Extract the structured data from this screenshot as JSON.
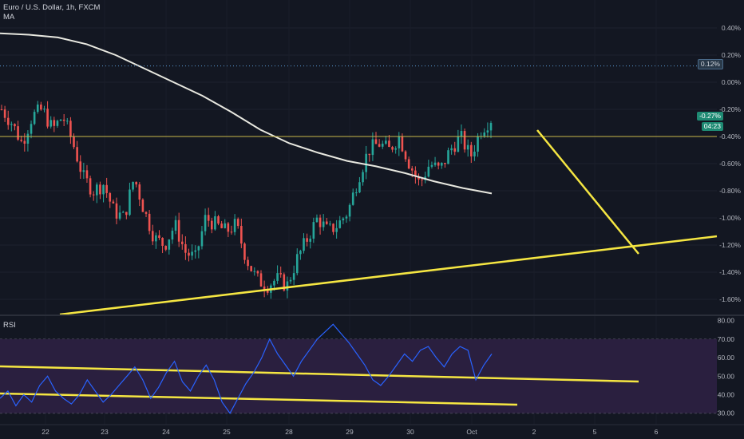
{
  "legend": {
    "symbol": "Euro / U.S. Dollar, 1h, FXCM",
    "indicator": "MA"
  },
  "rsi_label": "RSI",
  "price_axis": [
    "0.40%",
    "0.20%",
    "0.00%",
    "-0.20%",
    "-0.40%",
    "-0.60%",
    "-0.80%",
    "-1.00%",
    "-1.20%",
    "-1.40%",
    "-1.60%"
  ],
  "rsi_axis": [
    "80.00",
    "70.00",
    "60.00",
    "50.00",
    "40.00",
    "30.00"
  ],
  "time_axis": [
    "22",
    "23",
    "24",
    "25",
    "28",
    "29",
    "30",
    "Oct",
    "2",
    "5",
    "6"
  ],
  "tags": {
    "dotted_level": "0.12%",
    "current_change": "-0.27%",
    "countdown": "04:23"
  },
  "colors": {
    "background": "#131722",
    "bull": "#26a69a",
    "bear": "#ef5350",
    "ma": "#e8e8e0",
    "trendline": "#f5e642",
    "rsi_line": "#2962ff",
    "rsi_band": "#2a1f3f"
  },
  "chart_data": [
    {
      "type": "candlestick",
      "title": "Euro / U.S. Dollar, 1h, FXCM",
      "y_unit": "%",
      "ylim": [
        -1.7,
        0.5
      ],
      "x_categories": [
        "22",
        "23",
        "24",
        "25",
        "28",
        "29",
        "30",
        "Oct",
        "2",
        "5",
        "6"
      ],
      "horizontal_levels": [
        0.12,
        -0.4
      ],
      "current_value": -0.27,
      "close_path": [
        -0.2,
        -0.3,
        -0.45,
        -0.25,
        -0.2,
        -0.35,
        -0.25,
        -0.45,
        -0.7,
        -0.8,
        -0.75,
        -0.95,
        -1.0,
        -0.7,
        -0.95,
        -1.15,
        -1.2,
        -1.05,
        -1.25,
        -1.3,
        -1.0,
        -1.05,
        -1.1,
        -1.05,
        -1.3,
        -1.45,
        -1.5,
        -1.45,
        -1.5,
        -1.3,
        -1.15,
        -1.0,
        -1.1,
        -1.05,
        -0.95,
        -0.7,
        -0.5,
        -0.45,
        -0.5,
        -0.4,
        -0.6,
        -0.75,
        -0.6,
        -0.65,
        -0.5,
        -0.4,
        -0.55,
        -0.35,
        -0.27
      ],
      "ma_path": [
        0.36,
        0.35,
        0.33,
        0.28,
        0.2,
        0.1,
        0.0,
        -0.1,
        -0.22,
        -0.35,
        -0.45,
        -0.52,
        -0.58,
        -0.62,
        -0.67,
        -0.73,
        -0.78,
        -0.82
      ]
    },
    {
      "type": "line",
      "title": "RSI",
      "ylim": [
        26,
        82
      ],
      "band": [
        30,
        70
      ],
      "values": [
        38,
        42,
        34,
        40,
        36,
        45,
        50,
        42,
        38,
        35,
        40,
        48,
        42,
        36,
        40,
        45,
        50,
        55,
        48,
        38,
        44,
        52,
        58,
        47,
        42,
        50,
        56,
        48,
        36,
        30,
        38,
        46,
        52,
        60,
        70,
        62,
        56,
        50,
        58,
        64,
        70,
        74,
        78,
        73,
        68,
        62,
        56,
        48,
        45,
        50,
        56,
        62,
        58,
        64,
        66,
        60,
        55,
        62,
        66,
        64,
        48,
        56,
        62
      ]
    }
  ]
}
